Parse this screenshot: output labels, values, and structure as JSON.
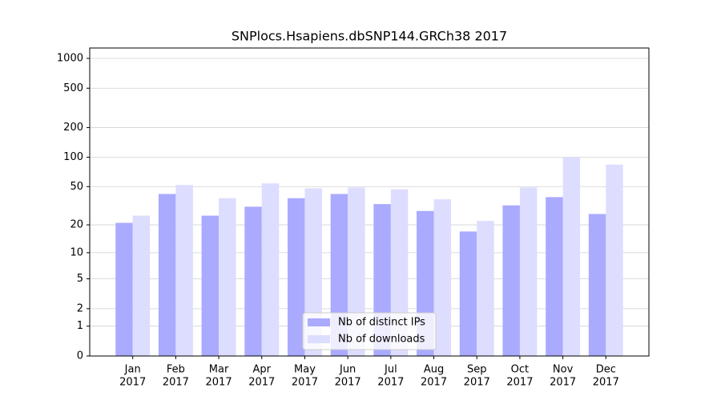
{
  "chart_data": {
    "type": "bar",
    "title": "SNPlocs.Hsapiens.dbSNP144.GRCh38 2017",
    "categories": [
      "Jan",
      "Feb",
      "Mar",
      "Apr",
      "May",
      "Jun",
      "Jul",
      "Aug",
      "Sep",
      "Oct",
      "Nov",
      "Dec"
    ],
    "category_years": [
      "2017",
      "2017",
      "2017",
      "2017",
      "2017",
      "2017",
      "2017",
      "2017",
      "2017",
      "2017",
      "2017",
      "2017"
    ],
    "series": [
      {
        "name": "Nb of distinct IPs",
        "color": "#aaaaff",
        "values": [
          21,
          42,
          25,
          31,
          38,
          42,
          33,
          28,
          17,
          32,
          39,
          26
        ]
      },
      {
        "name": "Nb of downloads",
        "color": "#ddddff",
        "values": [
          25,
          52,
          38,
          54,
          48,
          49,
          47,
          37,
          22,
          49,
          100,
          84
        ]
      }
    ],
    "yscale": "log1p",
    "ylim": [
      0,
      1273
    ],
    "yticks": [
      0,
      1,
      2,
      5,
      10,
      20,
      50,
      100,
      200,
      500,
      1000
    ],
    "grid": true,
    "legend": "lower center"
  }
}
